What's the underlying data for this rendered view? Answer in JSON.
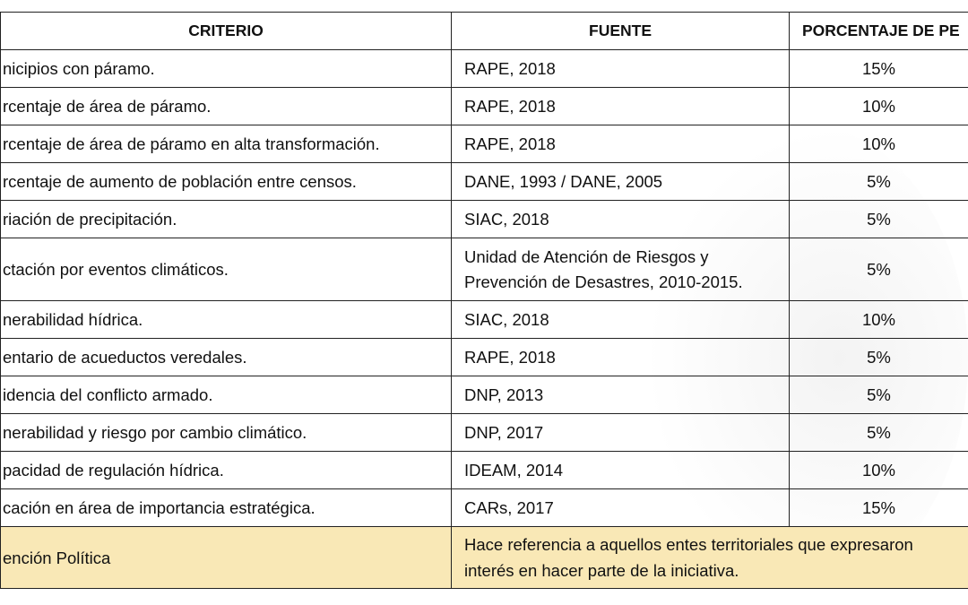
{
  "table": {
    "headers": [
      "CRITERIO",
      "FUENTE",
      "PORCENTAJE DE PE"
    ],
    "rows": [
      {
        "criterio": "nicipios con páramo.",
        "fuente": [
          "RAPE, 2018"
        ],
        "porcentaje": "15%"
      },
      {
        "criterio": "rcentaje de área de páramo.",
        "fuente": [
          "RAPE, 2018"
        ],
        "porcentaje": "10%"
      },
      {
        "criterio": "rcentaje de área de páramo en alta transformación.",
        "fuente": [
          "RAPE, 2018"
        ],
        "porcentaje": "10%"
      },
      {
        "criterio": "rcentaje de aumento de población entre censos.",
        "fuente": [
          "DANE, 1993 / DANE, 2005"
        ],
        "porcentaje": "5%"
      },
      {
        "criterio": "riación de precipitación.",
        "fuente": [
          "SIAC, 2018"
        ],
        "porcentaje": "5%"
      },
      {
        "criterio": "ctación por eventos climáticos.",
        "fuente": [
          "Unidad de Atención de Riesgos y",
          "Prevención de Desastres, 2010-2015."
        ],
        "porcentaje": "5%"
      },
      {
        "criterio": "nerabilidad hídrica.",
        "fuente": [
          "SIAC, 2018"
        ],
        "porcentaje": "10%"
      },
      {
        "criterio": "entario de acueductos veredales.",
        "fuente": [
          "RAPE, 2018"
        ],
        "porcentaje": "5%"
      },
      {
        "criterio": "idencia del conflicto armado.",
        "fuente": [
          "DNP, 2013"
        ],
        "porcentaje": "5%"
      },
      {
        "criterio": "nerabilidad y riesgo por cambio climático.",
        "fuente": [
          "DNP, 2017"
        ],
        "porcentaje": "5%"
      },
      {
        "criterio": "pacidad de regulación hídrica.",
        "fuente": [
          "IDEAM, 2014"
        ],
        "porcentaje": "10%"
      },
      {
        "criterio": "cación en área de importancia estratégica.",
        "fuente": [
          "CARs, 2017"
        ],
        "porcentaje": "15%"
      }
    ],
    "final_row": {
      "criterio": "ención Política",
      "descripcion": [
        "Hace referencia a aquellos entes territoriales que expresaron",
        "interés en hacer parte de la iniciativa."
      ],
      "background": "#f9e8b6"
    }
  }
}
